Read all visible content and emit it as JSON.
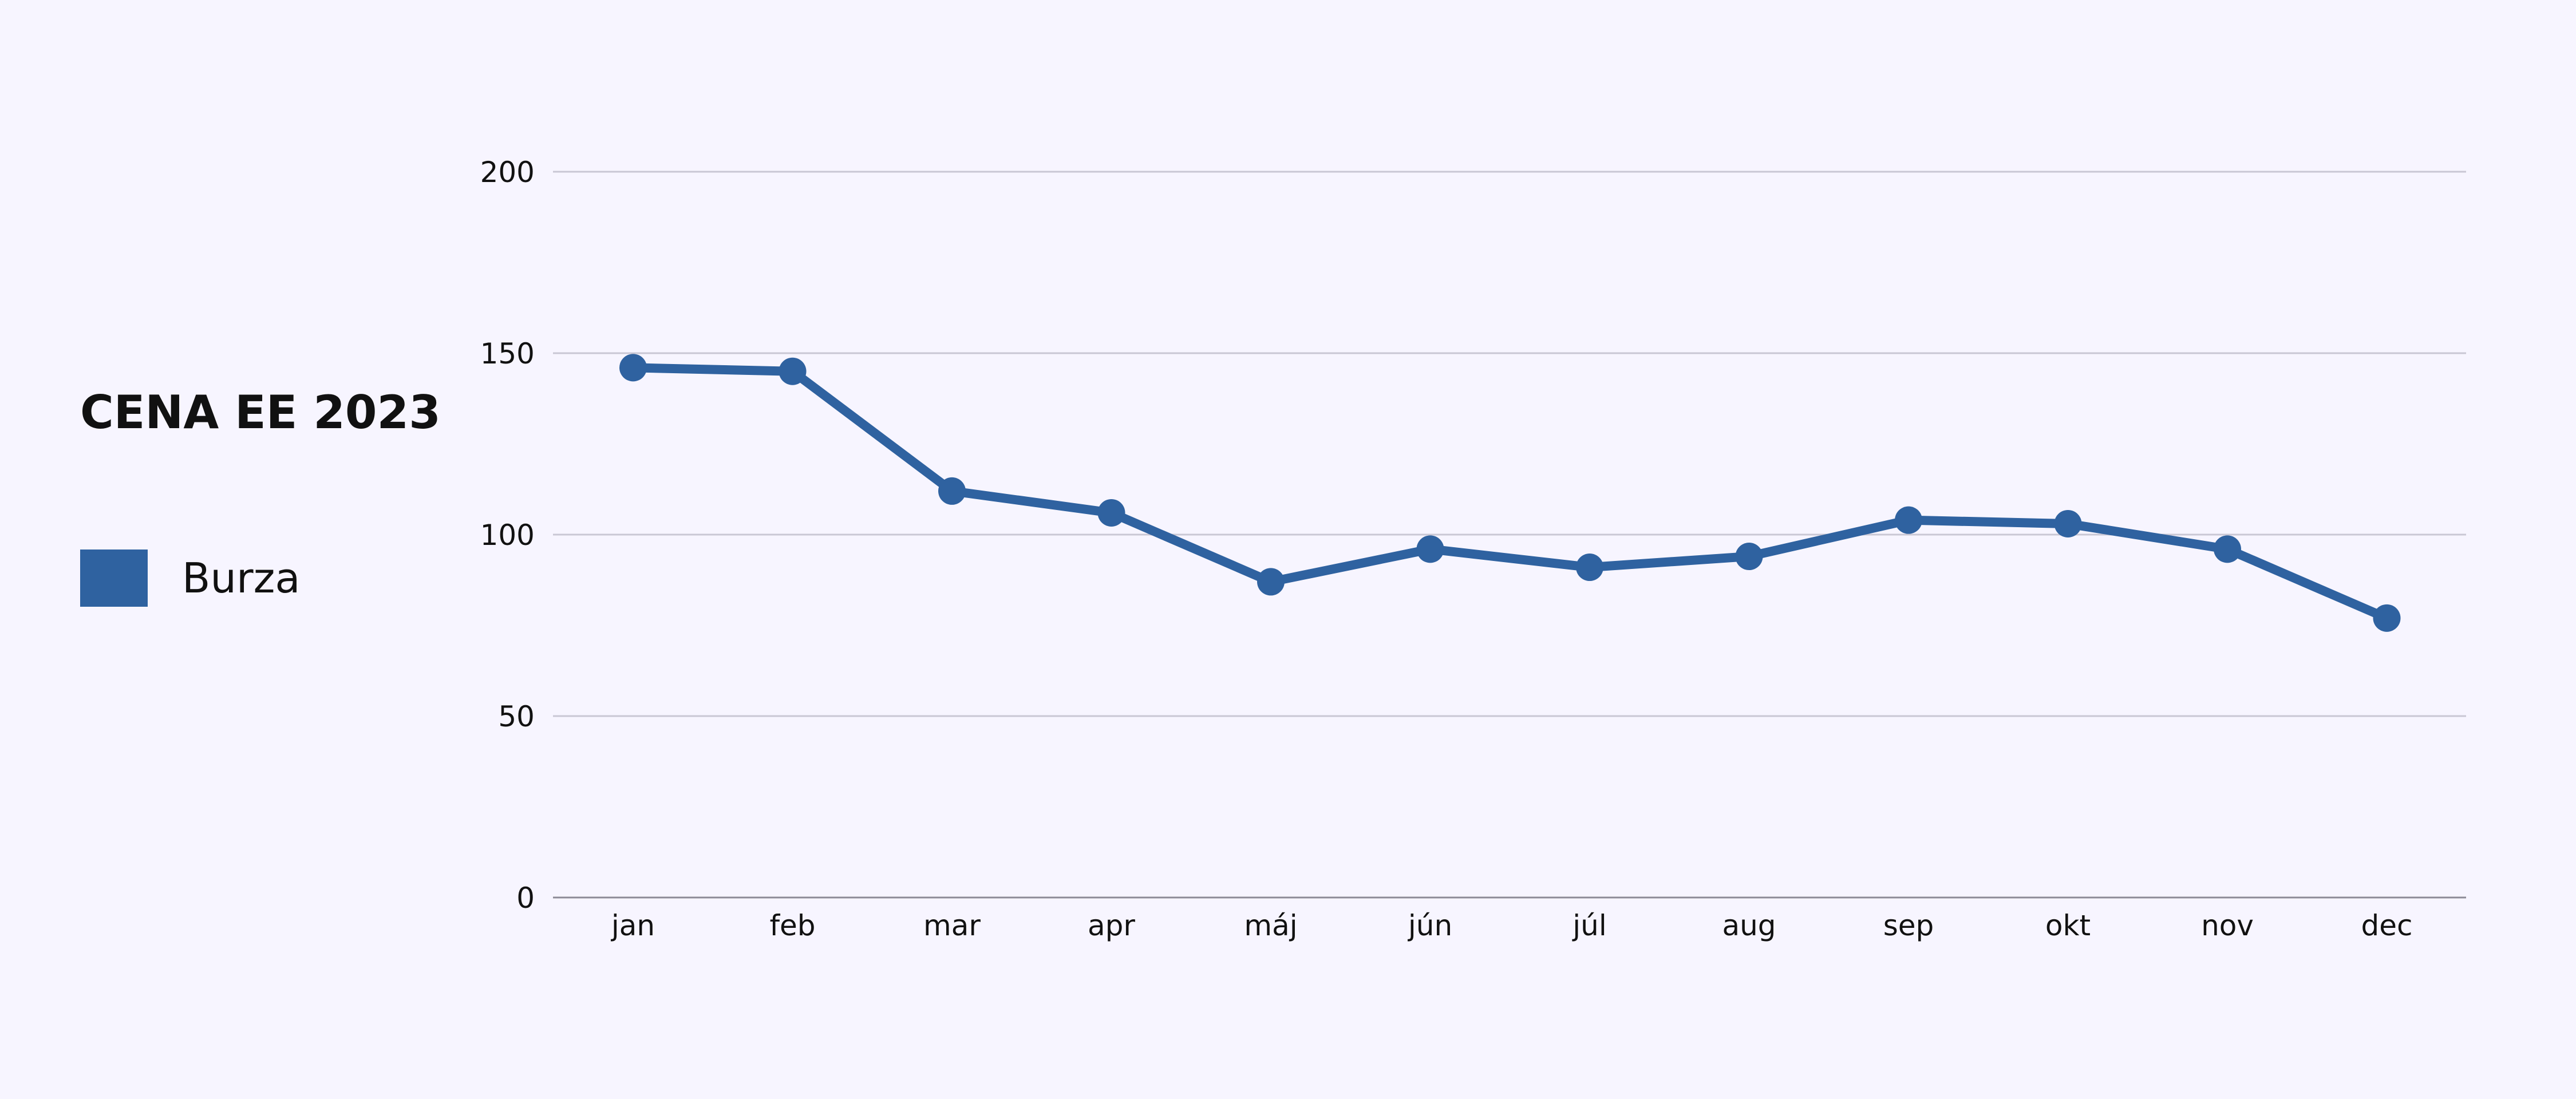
{
  "colors": {
    "background": "#f7f5ff",
    "series": "#2f62a0",
    "grid": "#c9c7d4",
    "text": "#111111"
  },
  "chart_data": {
    "type": "line",
    "title": "CENA EE 2023",
    "xlabel": "",
    "ylabel": "",
    "categories": [
      "jan",
      "feb",
      "mar",
      "apr",
      "máj",
      "jún",
      "júl",
      "aug",
      "sep",
      "okt",
      "nov",
      "dec"
    ],
    "series": [
      {
        "name": "Burza",
        "color": "#2f62a0",
        "values": [
          146,
          145,
          112,
          106,
          87,
          96,
          91,
          94,
          104,
          103,
          96,
          77
        ]
      }
    ],
    "ylim": [
      0,
      200
    ],
    "yticks": [
      "0",
      "50",
      "100",
      "150",
      "200"
    ],
    "grid": true,
    "legend_position": "left"
  }
}
